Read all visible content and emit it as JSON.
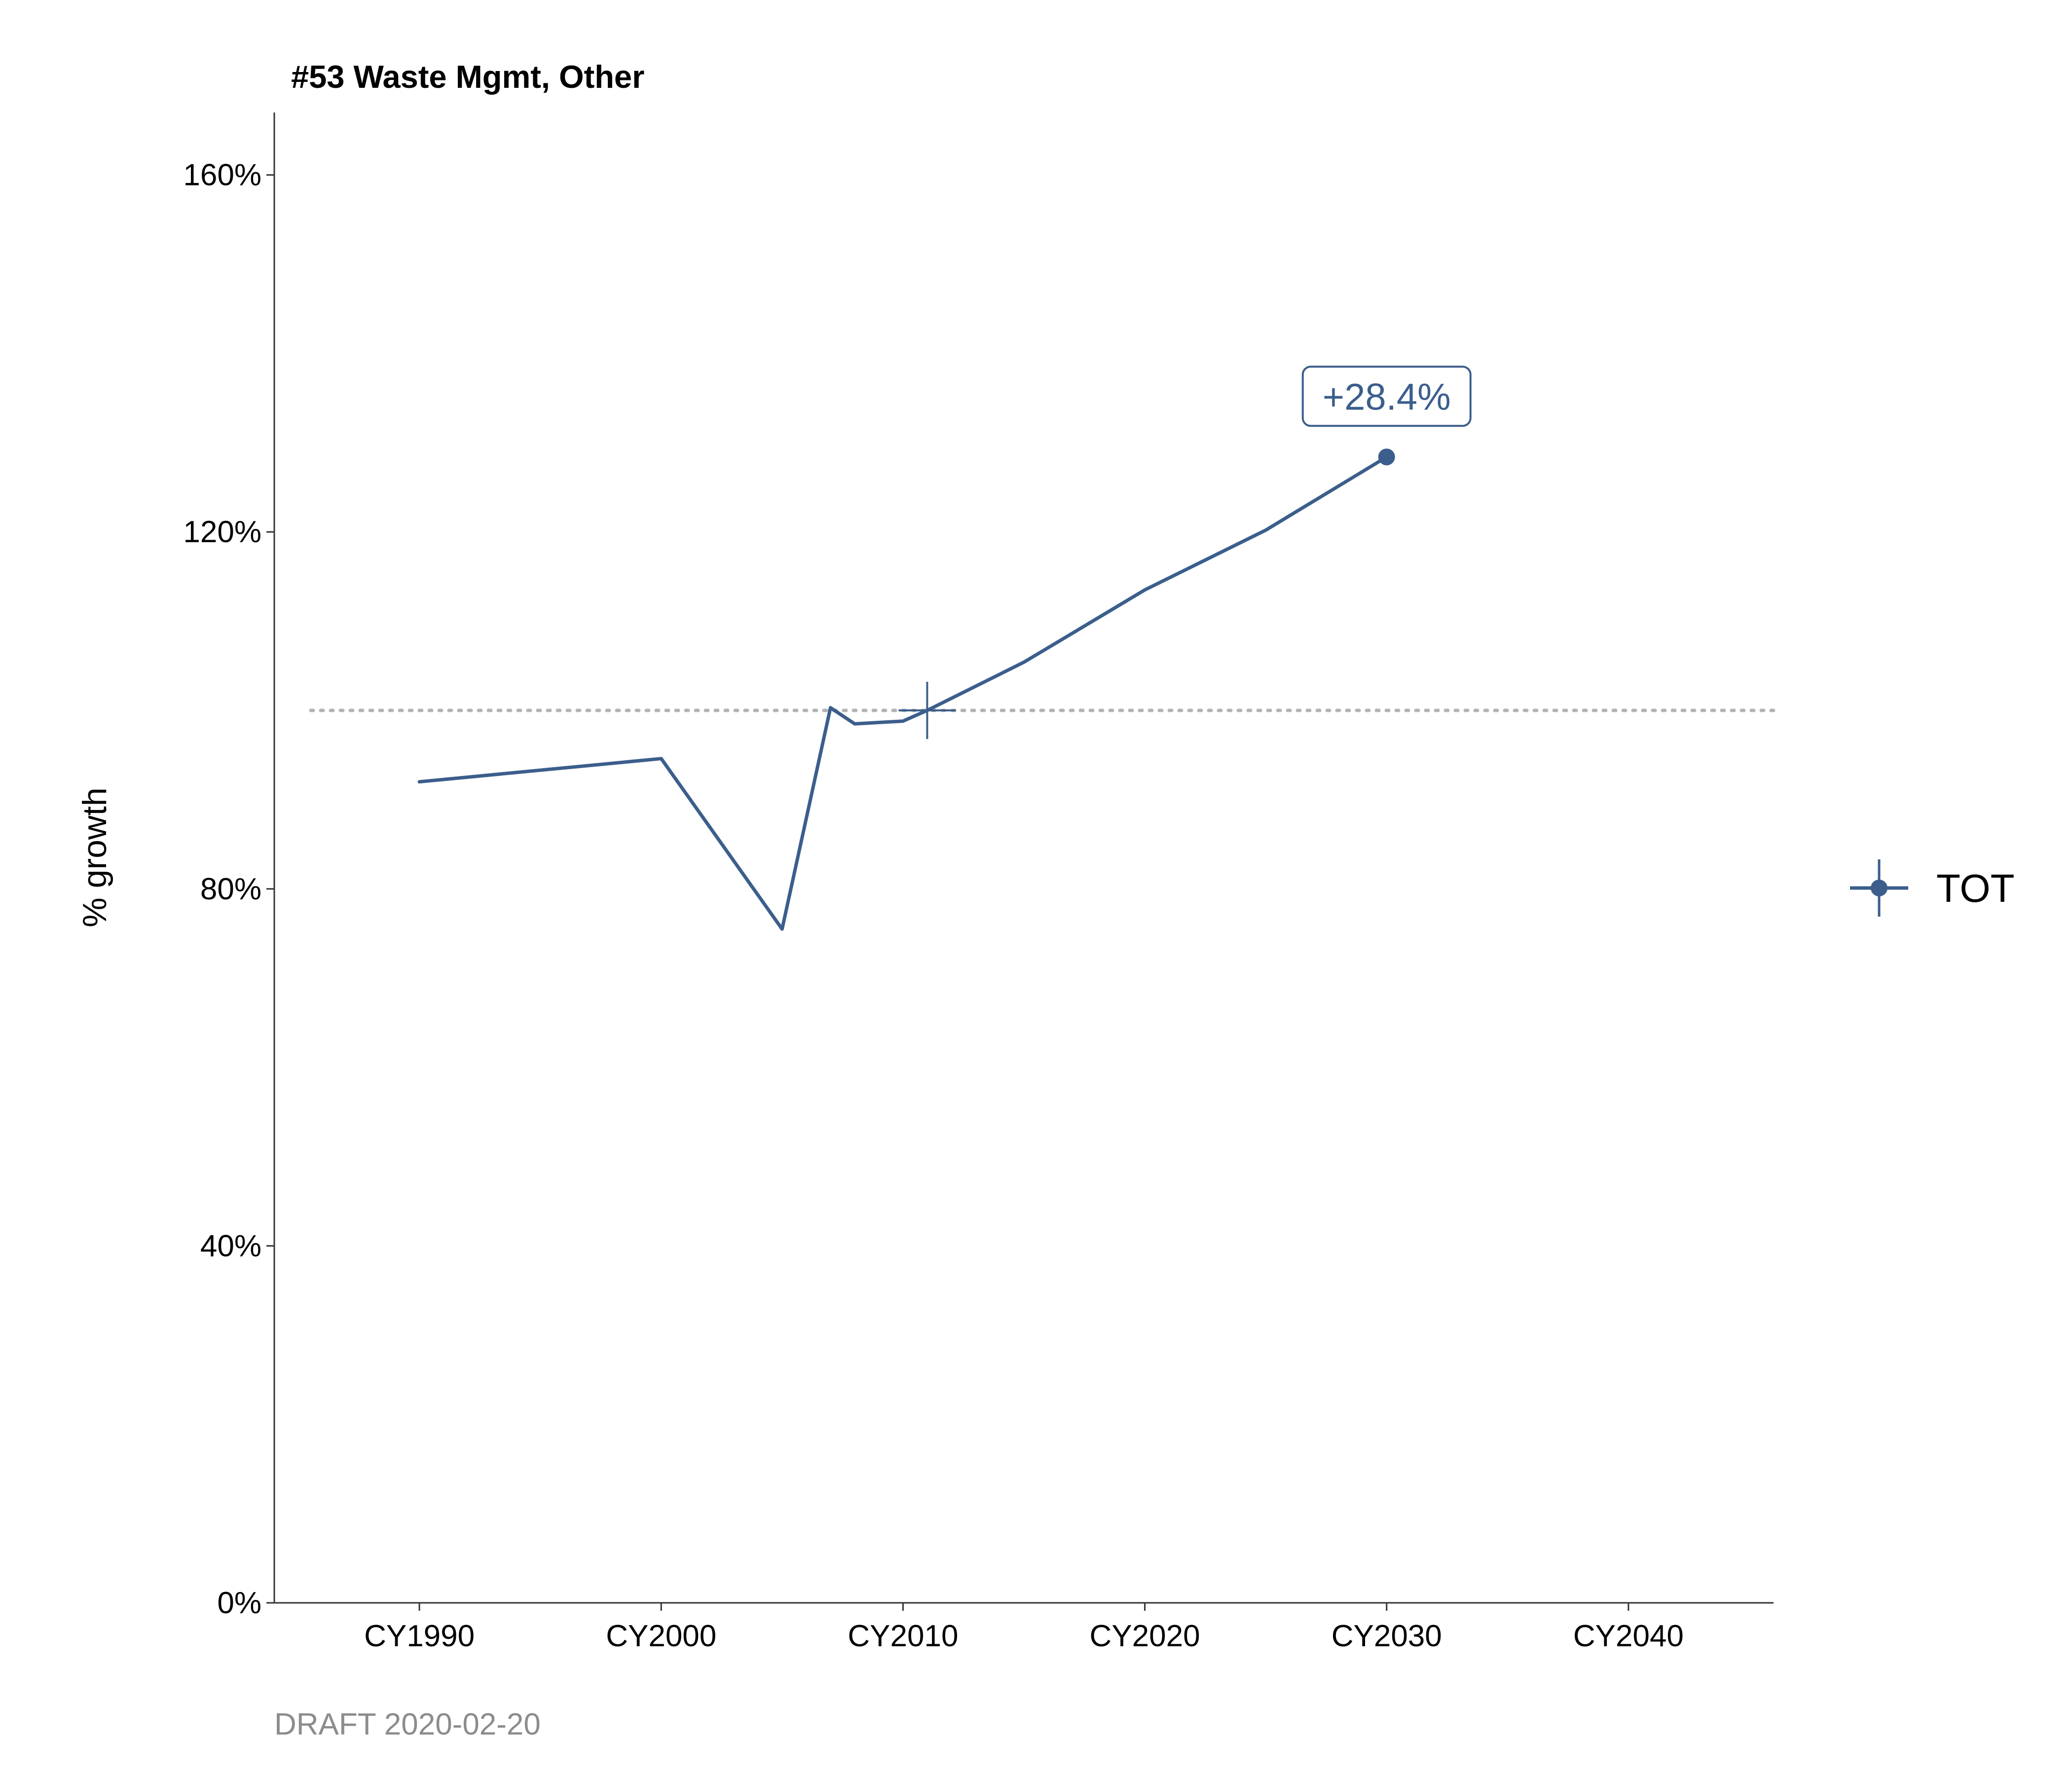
{
  "chart_data": {
    "type": "line",
    "title": "#53 Waste Mgmt, Other",
    "xlabel": "",
    "ylabel": "% growth",
    "x_ticks": [
      "CY1990",
      "CY2000",
      "CY2010",
      "CY2020",
      "CY2030",
      "CY2040"
    ],
    "y_ticks": [
      "0%",
      "40%",
      "80%",
      "120%",
      "160%"
    ],
    "xlim": [
      1984,
      2046
    ],
    "ylim": [
      0,
      167
    ],
    "reference_line": {
      "y": 100,
      "style": "dotted",
      "color": "#b3b3b3"
    },
    "base_marker": {
      "x": 2011,
      "y": 100
    },
    "series": [
      {
        "name": "TOT",
        "color": "#3b5e8c",
        "x": [
          1990,
          2000,
          2005,
          2007,
          2008,
          2010,
          2011,
          2015,
          2020,
          2025,
          2030
        ],
        "y": [
          92,
          94.6,
          75.5,
          100.3,
          98.5,
          98.8,
          100,
          105.4,
          113.5,
          120.2,
          128.4
        ]
      }
    ],
    "annotation": {
      "text": "+28.4%",
      "x": 2030,
      "y": 128.4
    },
    "legend": {
      "position": "right",
      "entries": [
        "TOT"
      ]
    },
    "caption": "DRAFT 2020-02-20",
    "grid": false
  }
}
